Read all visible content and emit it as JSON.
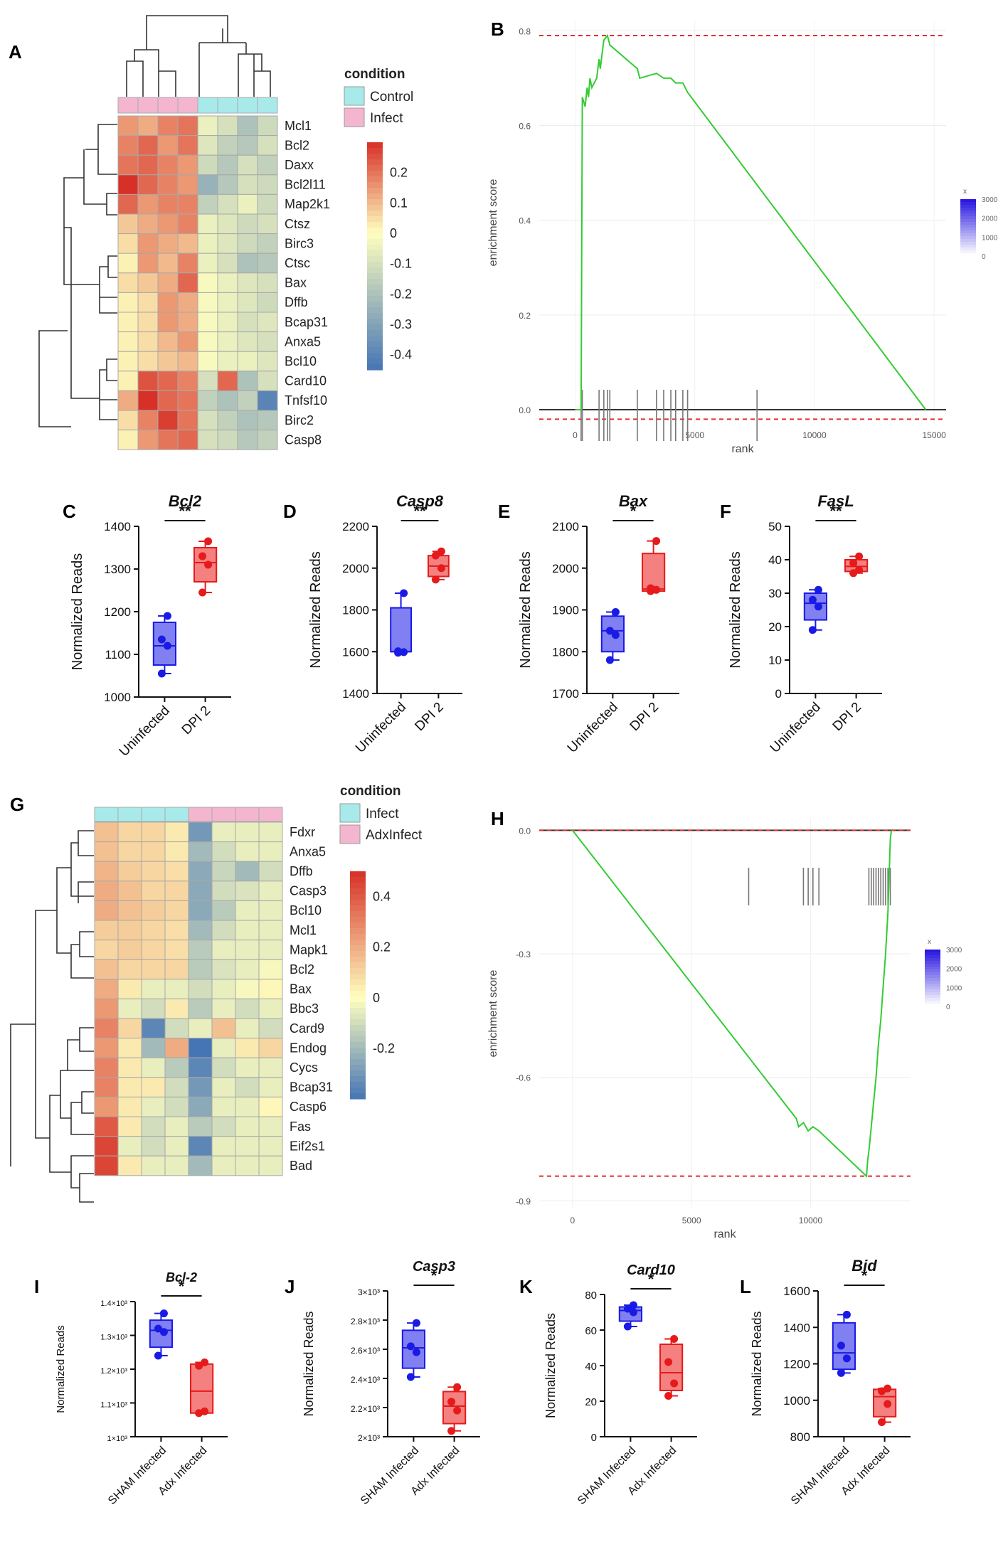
{
  "panel_letters": {
    "A": "A",
    "B": "B",
    "C": "C",
    "D": "D",
    "E": "E",
    "F": "F",
    "G": "G",
    "H": "H",
    "I": "I",
    "J": "J",
    "K": "K",
    "L": "L"
  },
  "colors": {
    "heat_low": "#4575b4",
    "heat_mid": "#ffffbf",
    "heat_high": "#d73027",
    "control_bar": "#a8eaea",
    "infect_bar": "#f4b6cf",
    "box_blue_fill": "#8080f2",
    "box_blue_stroke": "#1a1ae6",
    "box_red_fill": "#f48080",
    "box_red_stroke": "#e61a1a",
    "gsea_line": "#33cc33",
    "gsea_ref": "#e03030"
  },
  "heatmap_A": {
    "legend_title": "condition",
    "legend_items": [
      {
        "label": "Control",
        "color": "#a8eaea"
      },
      {
        "label": "Infect",
        "color": "#f4b6cf"
      }
    ],
    "column_conditions": [
      "Infect",
      "Infect",
      "Infect",
      "Infect",
      "Control",
      "Control",
      "Control",
      "Control"
    ],
    "genes": [
      "Mcl1",
      "Bcl2",
      "Daxx",
      "Bcl2l11",
      "Map2k1",
      "Ctsz",
      "Birc3",
      "Ctsc",
      "Bax",
      "Dffb",
      "Bcap31",
      "Anxa5",
      "Bcl10",
      "Card10",
      "Tnfsf10",
      "Birc2",
      "Casp8"
    ],
    "values": [
      [
        0.15,
        0.12,
        0.18,
        0.2,
        -0.05,
        -0.1,
        -0.2,
        -0.12
      ],
      [
        0.18,
        0.22,
        0.15,
        0.2,
        -0.08,
        -0.15,
        -0.18,
        -0.1
      ],
      [
        0.2,
        0.22,
        0.18,
        0.15,
        -0.12,
        -0.18,
        -0.1,
        -0.15
      ],
      [
        0.3,
        0.22,
        0.18,
        0.15,
        -0.25,
        -0.18,
        -0.1,
        -0.12
      ],
      [
        0.22,
        0.15,
        0.18,
        0.18,
        -0.15,
        -0.1,
        -0.05,
        -0.12
      ],
      [
        0.08,
        0.12,
        0.15,
        0.18,
        -0.05,
        -0.08,
        -0.12,
        -0.1
      ],
      [
        0.05,
        0.15,
        0.12,
        0.1,
        -0.05,
        -0.08,
        -0.12,
        -0.15
      ],
      [
        0.02,
        0.15,
        0.1,
        0.18,
        -0.05,
        -0.1,
        -0.2,
        -0.18
      ],
      [
        0.05,
        0.08,
        0.12,
        0.22,
        -0.02,
        -0.05,
        -0.08,
        -0.1
      ],
      [
        0.02,
        0.05,
        0.15,
        0.12,
        -0.02,
        -0.05,
        -0.08,
        -0.12
      ],
      [
        0.02,
        0.05,
        0.15,
        0.12,
        -0.02,
        -0.05,
        -0.1,
        -0.08
      ],
      [
        0.02,
        0.05,
        0.1,
        0.15,
        -0.02,
        -0.05,
        -0.08,
        -0.1
      ],
      [
        0.02,
        0.05,
        0.08,
        0.1,
        -0.02,
        -0.05,
        -0.05,
        -0.08
      ],
      [
        0.02,
        0.25,
        0.22,
        0.18,
        -0.1,
        0.22,
        -0.2,
        -0.1
      ],
      [
        0.12,
        0.3,
        0.22,
        0.2,
        -0.15,
        -0.2,
        -0.15,
        -0.4
      ],
      [
        0.05,
        0.18,
        0.28,
        0.2,
        -0.1,
        -0.15,
        -0.2,
        -0.18
      ],
      [
        0.02,
        0.15,
        0.2,
        0.22,
        -0.1,
        -0.12,
        -0.18,
        -0.15
      ]
    ],
    "scale_ticks": [
      "0.2",
      "0.1",
      "0",
      "-0.1",
      "-0.2",
      "-0.3",
      "-0.4"
    ],
    "scale_range": [
      -0.45,
      0.3
    ]
  },
  "heatmap_G": {
    "legend_title": "condition",
    "legend_items": [
      {
        "label": "Infect",
        "color": "#a8eaea"
      },
      {
        "label": "AdxInfect",
        "color": "#f4b6cf"
      }
    ],
    "column_conditions": [
      "Infect",
      "Infect",
      "Infect",
      "Infect",
      "AdxInfect",
      "AdxInfect",
      "AdxInfect",
      "AdxInfect"
    ],
    "genes": [
      "Fdxr",
      "Anxa5",
      "Dffb",
      "Casp3",
      "Bcl10",
      "Mcl1",
      "Mapk1",
      "Bcl2",
      "Bax",
      "Bbc3",
      "Card9",
      "Endog",
      "Cycs",
      "Bcap31",
      "Casp6",
      "Fas",
      "Eif2s1",
      "Bad"
    ],
    "values": [
      [
        0.15,
        0.1,
        0.1,
        0.05,
        -0.3,
        -0.05,
        -0.05,
        -0.05
      ],
      [
        0.15,
        0.1,
        0.1,
        0.05,
        -0.2,
        -0.1,
        -0.05,
        -0.05
      ],
      [
        0.18,
        0.12,
        0.1,
        0.08,
        -0.25,
        -0.12,
        -0.2,
        -0.1
      ],
      [
        0.2,
        0.15,
        0.1,
        0.1,
        -0.25,
        -0.1,
        -0.08,
        -0.05
      ],
      [
        0.2,
        0.15,
        0.12,
        0.1,
        -0.25,
        -0.15,
        -0.05,
        -0.05
      ],
      [
        0.12,
        0.12,
        0.1,
        0.08,
        -0.2,
        -0.1,
        -0.05,
        -0.05
      ],
      [
        0.1,
        0.12,
        0.1,
        0.08,
        -0.15,
        -0.05,
        -0.05,
        -0.05
      ],
      [
        0.15,
        0.1,
        0.1,
        0.1,
        -0.15,
        -0.08,
        -0.05,
        -0.02
      ],
      [
        0.2,
        0.05,
        -0.05,
        -0.05,
        -0.1,
        -0.05,
        -0.02,
        0.02
      ],
      [
        0.25,
        -0.05,
        -0.1,
        0.05,
        -0.15,
        -0.05,
        -0.1,
        -0.05
      ],
      [
        0.3,
        0.1,
        -0.35,
        -0.1,
        -0.05,
        0.15,
        -0.05,
        -0.1
      ],
      [
        0.25,
        0.05,
        -0.2,
        0.2,
        -0.4,
        -0.05,
        0.05,
        0.1
      ],
      [
        0.3,
        0.05,
        -0.05,
        -0.15,
        -0.35,
        -0.1,
        -0.05,
        -0.05
      ],
      [
        0.3,
        0.05,
        0.05,
        -0.1,
        -0.3,
        -0.05,
        -0.1,
        -0.05
      ],
      [
        0.25,
        0.05,
        -0.05,
        -0.1,
        -0.25,
        -0.05,
        -0.05,
        0.02
      ],
      [
        0.4,
        0.05,
        -0.1,
        -0.05,
        -0.15,
        -0.1,
        -0.05,
        -0.05
      ],
      [
        0.45,
        -0.05,
        -0.1,
        -0.05,
        -0.35,
        -0.05,
        -0.05,
        -0.05
      ],
      [
        0.45,
        0.05,
        -0.05,
        -0.05,
        -0.2,
        -0.05,
        -0.05,
        -0.05
      ]
    ],
    "scale_ticks": [
      "0.4",
      "0.2",
      "0",
      "-0.2"
    ],
    "scale_range": [
      -0.4,
      0.5
    ]
  },
  "gsea_B": {
    "ylabel": "enrichment score",
    "xlabel": "rank",
    "yticks": [
      "0.8",
      "0.6",
      "0.4",
      "0.2",
      "0.0"
    ],
    "xticks": [
      "0",
      "5000",
      "10000",
      "15000"
    ],
    "ylim": [
      -0.03,
      0.82
    ],
    "xlim": [
      -1500,
      15500
    ],
    "max_es": 0.79,
    "zero_ref": -0.02,
    "hits": [
      250,
      300,
      1000,
      1200,
      1350,
      1450,
      2600,
      3400,
      3700,
      4000,
      4200,
      4500,
      4700,
      7600
    ],
    "curve": [
      [
        0,
        0
      ],
      [
        250,
        0.0
      ],
      [
        300,
        0.66
      ],
      [
        420,
        0.64
      ],
      [
        500,
        0.68
      ],
      [
        560,
        0.66
      ],
      [
        620,
        0.7
      ],
      [
        700,
        0.68
      ],
      [
        900,
        0.7
      ],
      [
        1000,
        0.74
      ],
      [
        1050,
        0.72
      ],
      [
        1200,
        0.78
      ],
      [
        1350,
        0.79
      ],
      [
        1450,
        0.77
      ],
      [
        2600,
        0.72
      ],
      [
        2700,
        0.7
      ],
      [
        3400,
        0.71
      ],
      [
        3700,
        0.7
      ],
      [
        4000,
        0.7
      ],
      [
        4200,
        0.69
      ],
      [
        4500,
        0.69
      ],
      [
        4700,
        0.67
      ],
      [
        14650,
        0.0
      ]
    ],
    "legend_title": "x",
    "legend_ticks": [
      "3000",
      "2000",
      "1000",
      "0"
    ]
  },
  "gsea_H": {
    "ylabel": "enrichment score",
    "xlabel": "rank",
    "yticks": [
      "0.0",
      "-0.3",
      "-0.6",
      "-0.9"
    ],
    "xticks": [
      "0",
      "5000",
      "10000"
    ],
    "ylim": [
      -0.92,
      0.03
    ],
    "xlim": [
      -1400,
      14200
    ],
    "min_es": -0.84,
    "zero_ref": 0.0,
    "hits": [
      7400,
      9700,
      9900,
      10100,
      10350,
      12450,
      12550,
      12650,
      12750,
      12850,
      12950,
      13050,
      13150,
      13250,
      13350
    ],
    "curve": [
      [
        0,
        0
      ],
      [
        9400,
        -0.7
      ],
      [
        9500,
        -0.72
      ],
      [
        9700,
        -0.71
      ],
      [
        9900,
        -0.73
      ],
      [
        10100,
        -0.72
      ],
      [
        10350,
        -0.73
      ],
      [
        12350,
        -0.84
      ],
      [
        12400,
        -0.8
      ],
      [
        12450,
        -0.78
      ],
      [
        12550,
        -0.72
      ],
      [
        12650,
        -0.66
      ],
      [
        12750,
        -0.6
      ],
      [
        12850,
        -0.52
      ],
      [
        12950,
        -0.46
      ],
      [
        13050,
        -0.38
      ],
      [
        13150,
        -0.3
      ],
      [
        13250,
        -0.2
      ],
      [
        13350,
        -0.02
      ],
      [
        13400,
        0.0
      ]
    ],
    "legend_title": "x",
    "legend_ticks": [
      "3000",
      "2000",
      "1000",
      "0"
    ]
  },
  "chart_data": [
    {
      "type": "heatmap",
      "title": "",
      "xlabel": "",
      "ylabel": "",
      "categories": [
        "Mcl1",
        "Bcl2",
        "Daxx",
        "Bcl2l11",
        "Map2k1",
        "Ctsz",
        "Birc3",
        "Ctsc",
        "Bax",
        "Dffb",
        "Bcap31",
        "Anxa5",
        "Bcl10",
        "Card10",
        "Tnfsf10",
        "Birc2",
        "Casp8"
      ],
      "legend": [
        "Control",
        "Infect"
      ]
    },
    {
      "type": "line",
      "title": "",
      "xlabel": "rank",
      "ylabel": "enrichment score",
      "ylim": [
        0,
        0.8
      ],
      "max_enrichment_score": 0.79
    },
    {
      "type": "box",
      "title": "Bcl2",
      "ylabel": "Normalized Reads",
      "categories": [
        "Uninfected",
        "DPI 2"
      ],
      "significance": "**",
      "ylim": [
        1000,
        1400
      ],
      "yticks": [
        "1000",
        "1100",
        "1200",
        "1300",
        "1400"
      ],
      "series": [
        {
          "name": "Uninfected",
          "min": 1055,
          "q1": 1075,
          "median": 1120,
          "q3": 1175,
          "max": 1190,
          "points": [
            1055,
            1120,
            1135,
            1190
          ]
        },
        {
          "name": "DPI 2",
          "min": 1245,
          "q1": 1270,
          "median": 1315,
          "q3": 1350,
          "max": 1365,
          "points": [
            1245,
            1310,
            1330,
            1365
          ]
        }
      ]
    },
    {
      "type": "box",
      "title": "Casp8",
      "ylabel": "Normalized Reads",
      "categories": [
        "Uninfected",
        "DPI 2"
      ],
      "significance": "**",
      "ylim": [
        1400,
        2200
      ],
      "yticks": [
        "1400",
        "1600",
        "1800",
        "2000",
        "2200"
      ],
      "series": [
        {
          "name": "Uninfected",
          "min": 1595,
          "q1": 1600,
          "median": 1600,
          "q3": 1810,
          "max": 1880,
          "points": [
            1595,
            1598,
            1602,
            1880
          ]
        },
        {
          "name": "DPI 2",
          "min": 1945,
          "q1": 1960,
          "median": 2010,
          "q3": 2060,
          "max": 2080,
          "points": [
            1945,
            2000,
            2060,
            2080
          ]
        }
      ]
    },
    {
      "type": "box",
      "title": "Bax",
      "ylabel": "Normalized Reads",
      "categories": [
        "Uninfected",
        "DPI 2"
      ],
      "significance": "*",
      "ylim": [
        1700,
        2100
      ],
      "yticks": [
        "1700",
        "1800",
        "1900",
        "2000",
        "2100"
      ],
      "series": [
        {
          "name": "Uninfected",
          "min": 1780,
          "q1": 1800,
          "median": 1850,
          "q3": 1885,
          "max": 1895,
          "points": [
            1780,
            1840,
            1850,
            1895
          ]
        },
        {
          "name": "DPI 2",
          "min": 1945,
          "q1": 1945,
          "median": 1950,
          "q3": 2035,
          "max": 2065,
          "points": [
            1945,
            1948,
            1952,
            2065
          ]
        }
      ]
    },
    {
      "type": "box",
      "title": "FasL",
      "ylabel": "Normalized Reads",
      "categories": [
        "Uninfected",
        "DPI 2"
      ],
      "significance": "**",
      "ylim": [
        0,
        50
      ],
      "yticks": [
        "0",
        "10",
        "20",
        "30",
        "40",
        "50"
      ],
      "series": [
        {
          "name": "Uninfected",
          "min": 19,
          "q1": 22,
          "median": 27,
          "q3": 30,
          "max": 31,
          "points": [
            19,
            26,
            28,
            31
          ]
        },
        {
          "name": "DPI 2",
          "min": 36,
          "q1": 36.5,
          "median": 38,
          "q3": 40,
          "max": 41,
          "points": [
            36,
            37,
            39,
            41
          ]
        }
      ]
    },
    {
      "type": "heatmap",
      "title": "",
      "xlabel": "",
      "ylabel": "",
      "categories": [
        "Fdxr",
        "Anxa5",
        "Dffb",
        "Casp3",
        "Bcl10",
        "Mcl1",
        "Mapk1",
        "Bcl2",
        "Bax",
        "Bbc3",
        "Card9",
        "Endog",
        "Cycs",
        "Bcap31",
        "Casp6",
        "Fas",
        "Eif2s1",
        "Bad"
      ],
      "legend": [
        "Infect",
        "AdxInfect"
      ]
    },
    {
      "type": "line",
      "title": "",
      "xlabel": "rank",
      "ylabel": "enrichment score",
      "ylim": [
        -0.9,
        0
      ],
      "min_enrichment_score": -0.84
    },
    {
      "type": "box",
      "title": "Bcl-2",
      "ylabel": "Normalized Reads",
      "categories": [
        "SHAM Infected",
        "Adx Infected"
      ],
      "significance": "*",
      "ylim": [
        1.0,
        1.4
      ],
      "yticks": [
        "1×10³",
        "1.1×10³",
        "1.2×10³",
        "1.3×10³",
        "1.4×10³"
      ],
      "series": [
        {
          "name": "SHAM Infected",
          "min": 1.24,
          "q1": 1.265,
          "median": 1.315,
          "q3": 1.345,
          "max": 1.365,
          "points": [
            1.24,
            1.31,
            1.32,
            1.365
          ]
        },
        {
          "name": "Adx Infected",
          "min": 1.07,
          "q1": 1.07,
          "median": 1.135,
          "q3": 1.215,
          "max": 1.22,
          "points": [
            1.07,
            1.075,
            1.21,
            1.22
          ]
        }
      ]
    },
    {
      "type": "box",
      "title": "Casp3",
      "ylabel": "Normalized Reads",
      "categories": [
        "SHAM Infected",
        "Adx Infected"
      ],
      "significance": "*",
      "ylim": [
        2.0,
        3.0
      ],
      "yticks": [
        "2×10³",
        "2.2×10³",
        "2.4×10³",
        "2.6×10³",
        "2.8×10³",
        "3×10³"
      ],
      "series": [
        {
          "name": "SHAM Infected",
          "min": 2.41,
          "q1": 2.47,
          "median": 2.61,
          "q3": 2.73,
          "max": 2.78,
          "points": [
            2.41,
            2.58,
            2.62,
            2.78
          ]
        },
        {
          "name": "Adx Infected",
          "min": 2.04,
          "q1": 2.09,
          "median": 2.21,
          "q3": 2.31,
          "max": 2.34,
          "points": [
            2.04,
            2.18,
            2.24,
            2.34
          ]
        }
      ]
    },
    {
      "type": "box",
      "title": "Card10",
      "ylabel": "Normalized Reads",
      "categories": [
        "SHAM Infected",
        "Adx Infected"
      ],
      "significance": "*",
      "ylim": [
        0,
        80
      ],
      "yticks": [
        "0",
        "20",
        "40",
        "60",
        "80"
      ],
      "series": [
        {
          "name": "SHAM Infected",
          "min": 62,
          "q1": 65,
          "median": 71,
          "q3": 73,
          "max": 74,
          "points": [
            62,
            70,
            72,
            74
          ]
        },
        {
          "name": "Adx Infected",
          "min": 23,
          "q1": 26,
          "median": 36,
          "q3": 52,
          "max": 55,
          "points": [
            23,
            30,
            42,
            55
          ]
        }
      ]
    },
    {
      "type": "box",
      "title": "Bid",
      "ylabel": "Normalized Reads",
      "categories": [
        "SHAM Infected",
        "Adx Infected"
      ],
      "significance": "*",
      "ylim": [
        800,
        1600
      ],
      "yticks": [
        "800",
        "1000",
        "1200",
        "1400",
        "1600"
      ],
      "series": [
        {
          "name": "SHAM Infected",
          "min": 1150,
          "q1": 1170,
          "median": 1260,
          "q3": 1425,
          "max": 1470,
          "points": [
            1150,
            1230,
            1300,
            1470
          ]
        },
        {
          "name": "Adx Infected",
          "min": 880,
          "q1": 910,
          "median": 1020,
          "q3": 1060,
          "max": 1065,
          "points": [
            880,
            980,
            1050,
            1065
          ]
        }
      ]
    }
  ]
}
